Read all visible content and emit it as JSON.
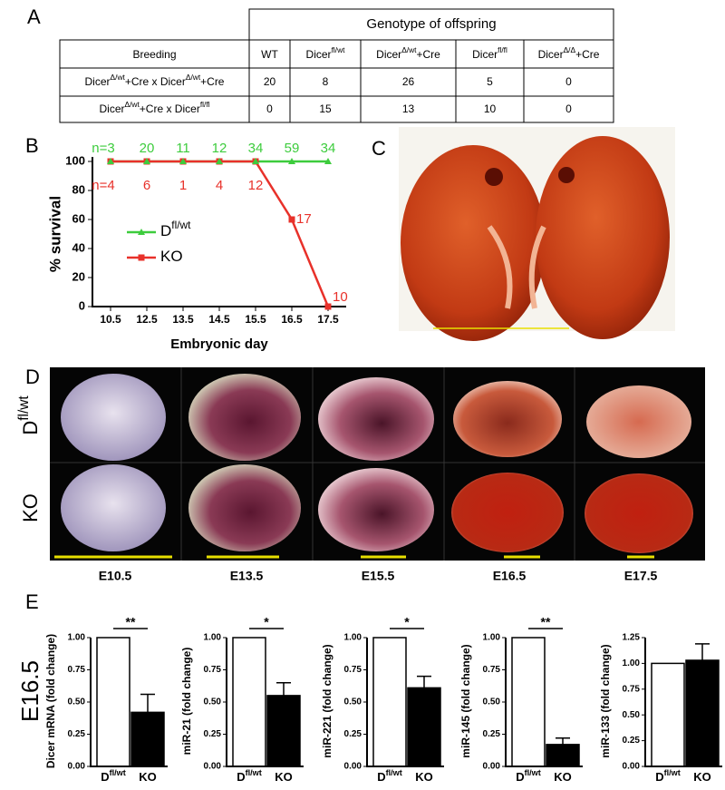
{
  "panel_labels": [
    "A",
    "B",
    "C",
    "D",
    "E"
  ],
  "table": {
    "header": "Genotype of offspring",
    "columns": [
      [
        {
          "text": "Breeding"
        }
      ],
      [
        {
          "text": "WT"
        }
      ],
      [
        {
          "text": "Dicer"
        },
        {
          "sup": "fl/wt"
        }
      ],
      [
        {
          "text": "Dicer"
        },
        {
          "sup": "Δ/wt"
        },
        {
          "text": "+Cre"
        }
      ],
      [
        {
          "text": "Dicer"
        },
        {
          "sup": "fl/fl"
        }
      ],
      [
        {
          "text": "Dicer"
        },
        {
          "sup": "Δ/Δ"
        },
        {
          "text": "+Cre"
        }
      ]
    ],
    "rows": [
      [
        [
          {
            "text": "Dicer"
          },
          {
            "sup": "Δ/wt"
          },
          {
            "text": "+Cre x Dicer"
          },
          {
            "sup": "Δ/wt"
          },
          {
            "text": "+Cre"
          }
        ],
        20,
        8,
        26,
        5,
        0
      ],
      [
        [
          {
            "text": "Dicer"
          },
          {
            "sup": "Δ/wt"
          },
          {
            "text": "+Cre x Dicer"
          },
          {
            "sup": "fl/fl"
          }
        ],
        0,
        15,
        13,
        10,
        0
      ]
    ]
  },
  "photos": {
    "row_labels": [
      [
        {
          "text": "D"
        },
        {
          "sup": "fl/wt"
        }
      ],
      [
        {
          "text": "KO"
        }
      ]
    ],
    "column_labels": [
      "E10.5",
      "E13.5",
      "E15.5",
      "E16.5",
      "E17.5"
    ]
  },
  "panel_e_label": "E16.5",
  "chart_data": [
    {
      "type": "line",
      "ylabel": "% survival",
      "xlabel": "Embryonic day",
      "categories": [
        "10.5",
        "12.5",
        "13.5",
        "14.5",
        "15.5",
        "16.5",
        "17.5"
      ],
      "ylim": [
        0,
        100
      ],
      "yticks": [
        0,
        20,
        40,
        60,
        80,
        100
      ],
      "legend": "upper-left",
      "series": [
        {
          "name": [
            {
              "text": "D"
            },
            {
              "sup": "fl/wt"
            }
          ],
          "color": "#3dcc3d",
          "marker": "triangle",
          "values": [
            100,
            100,
            100,
            100,
            100,
            100,
            100
          ],
          "n_labels": [
            "n=3",
            "20",
            "11",
            "12",
            "34",
            "59",
            "34"
          ]
        },
        {
          "name": [
            {
              "text": "KO"
            }
          ],
          "color": "#e8312a",
          "marker": "square",
          "values": [
            100,
            100,
            100,
            100,
            100,
            60,
            0
          ],
          "n_labels": [
            "n=4",
            "6",
            "1",
            "4",
            "12",
            "17",
            "10"
          ]
        }
      ]
    },
    {
      "type": "bar",
      "ylabel": "Dicer mRNA (fold change)",
      "categories": [
        [
          {
            "text": "D"
          },
          {
            "sup": "fl/wt"
          }
        ],
        [
          {
            "text": "KO"
          }
        ]
      ],
      "values": [
        1.0,
        0.42
      ],
      "errors": [
        null,
        0.14
      ],
      "colors": [
        "#ffffff",
        "#000000"
      ],
      "significance": "**",
      "ylim": [
        0,
        1
      ],
      "yticks": [
        {
          "value": 0,
          "label": "0.00"
        },
        {
          "value": 0.25,
          "label": "0.25"
        },
        {
          "value": 0.5,
          "label": "0.50"
        },
        {
          "value": 0.75,
          "label": "0.75"
        },
        {
          "value": 1,
          "label": "1.00"
        }
      ]
    },
    {
      "type": "bar",
      "ylabel": "miR-21 (fold change)",
      "categories": [
        [
          {
            "text": "D"
          },
          {
            "sup": "fl/wt"
          }
        ],
        [
          {
            "text": "KO"
          }
        ]
      ],
      "values": [
        1.0,
        0.55
      ],
      "errors": [
        null,
        0.1
      ],
      "colors": [
        "#ffffff",
        "#000000"
      ],
      "significance": "*",
      "ylim": [
        0,
        1
      ],
      "yticks": [
        {
          "value": 0,
          "label": "0.00"
        },
        {
          "value": 0.25,
          "label": "0.25"
        },
        {
          "value": 0.5,
          "label": "0.50"
        },
        {
          "value": 0.75,
          "label": "0.75"
        },
        {
          "value": 1,
          "label": "1.00"
        }
      ]
    },
    {
      "type": "bar",
      "ylabel": "miR-221 (fold change)",
      "categories": [
        [
          {
            "text": "D"
          },
          {
            "sup": "fl/wt"
          }
        ],
        [
          {
            "text": "KO"
          }
        ]
      ],
      "values": [
        1.0,
        0.61
      ],
      "errors": [
        null,
        0.09
      ],
      "colors": [
        "#ffffff",
        "#000000"
      ],
      "significance": "*",
      "ylim": [
        0,
        1
      ],
      "yticks": [
        {
          "value": 0,
          "label": "0.00"
        },
        {
          "value": 0.25,
          "label": "0.25"
        },
        {
          "value": 0.5,
          "label": "0.50"
        },
        {
          "value": 0.75,
          "label": "0.75"
        },
        {
          "value": 1,
          "label": "1.00"
        }
      ]
    },
    {
      "type": "bar",
      "ylabel": "miR-145 (fold change)",
      "categories": [
        [
          {
            "text": "D"
          },
          {
            "sup": "fl/wt"
          }
        ],
        [
          {
            "text": "KO"
          }
        ]
      ],
      "values": [
        1.0,
        0.17
      ],
      "errors": [
        null,
        0.05
      ],
      "colors": [
        "#ffffff",
        "#000000"
      ],
      "significance": "**",
      "ylim": [
        0,
        1
      ],
      "yticks": [
        {
          "value": 0,
          "label": "0.00"
        },
        {
          "value": 0.25,
          "label": "0.25"
        },
        {
          "value": 0.5,
          "label": "0.50"
        },
        {
          "value": 0.75,
          "label": "0.75"
        },
        {
          "value": 1,
          "label": "1.00"
        }
      ]
    },
    {
      "type": "bar",
      "ylabel": "miR-133 (fold change)",
      "categories": [
        [
          {
            "text": "D"
          },
          {
            "sup": "fl/wt"
          }
        ],
        [
          {
            "text": "KO"
          }
        ]
      ],
      "values": [
        1.0,
        1.03
      ],
      "errors": [
        null,
        0.16
      ],
      "colors": [
        "#ffffff",
        "#000000"
      ],
      "ylim": [
        0,
        1.25
      ],
      "yticks": [
        {
          "value": 0,
          "label": "0.00"
        },
        {
          "value": 0.25,
          "label": "0.25"
        },
        {
          "value": 0.5,
          "label": "0.50"
        },
        {
          "value": 0.75,
          "label": "0.75"
        },
        {
          "value": 1,
          "label": "1.00"
        },
        {
          "value": 1.25,
          "label": "1.25"
        }
      ]
    }
  ]
}
